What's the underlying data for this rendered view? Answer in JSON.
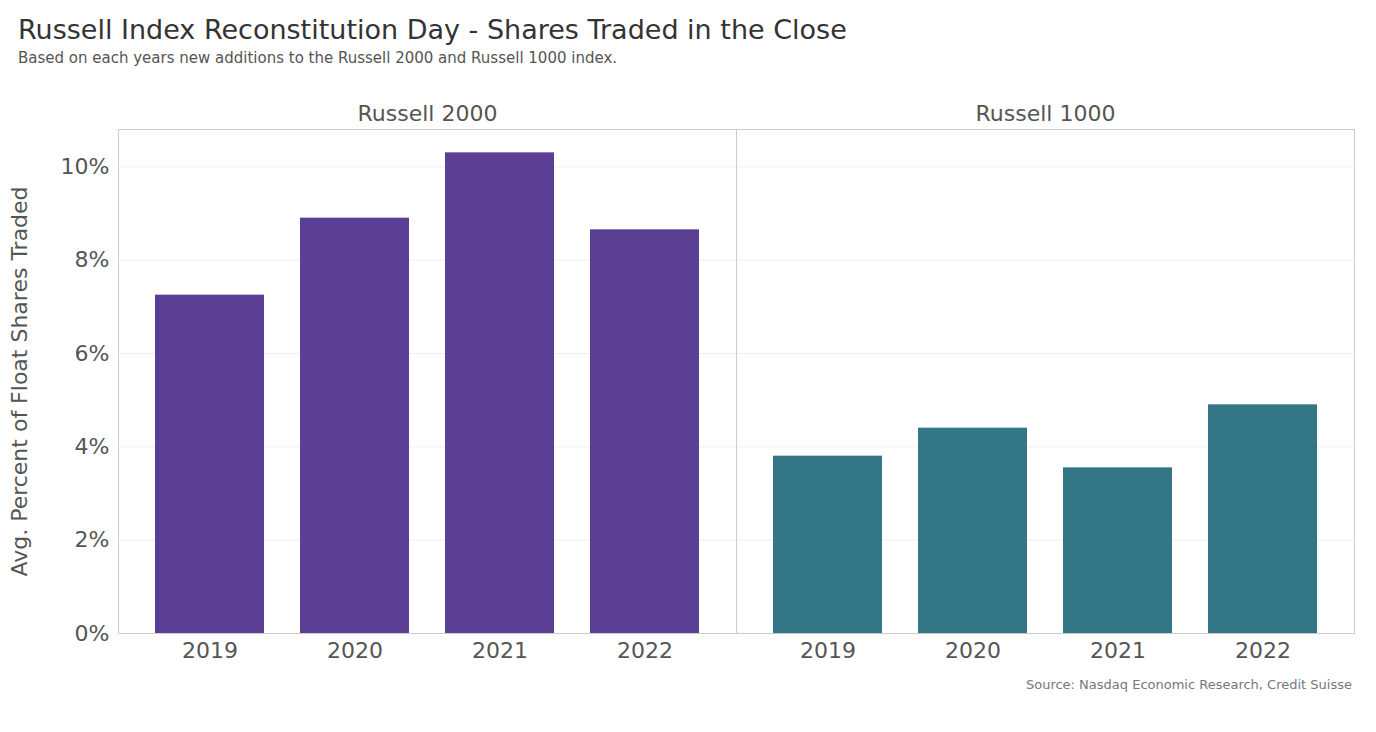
{
  "chart_data": {
    "type": "bar",
    "title": "Russell Index Reconstitution Day - Shares Traded in the Close",
    "subtitle": "Based on each years new additions to the Russell 2000 and Russell 1000 index.",
    "source": "Source: Nasdaq Economic Research, Credit Suisse",
    "y_label": "Avg. Percent of Float Shares Traded",
    "categories": [
      "2019",
      "2020",
      "2021",
      "2022"
    ],
    "series": [
      {
        "name": "Russell 2000",
        "color": "#5a3f94",
        "values": [
          7.25,
          8.9,
          10.3,
          8.65
        ]
      },
      {
        "name": "Russell 1000",
        "color": "#337686",
        "values": [
          3.8,
          4.4,
          3.55,
          4.9
        ]
      }
    ],
    "ylim": [
      0,
      10.8
    ],
    "yticks": [
      {
        "value": 0,
        "label": "0%"
      },
      {
        "value": 2,
        "label": "2%"
      },
      {
        "value": 4,
        "label": "4%"
      },
      {
        "value": 6,
        "label": "6%"
      },
      {
        "value": 8,
        "label": "8%"
      },
      {
        "value": 10,
        "label": "10%"
      }
    ],
    "grid": true
  }
}
